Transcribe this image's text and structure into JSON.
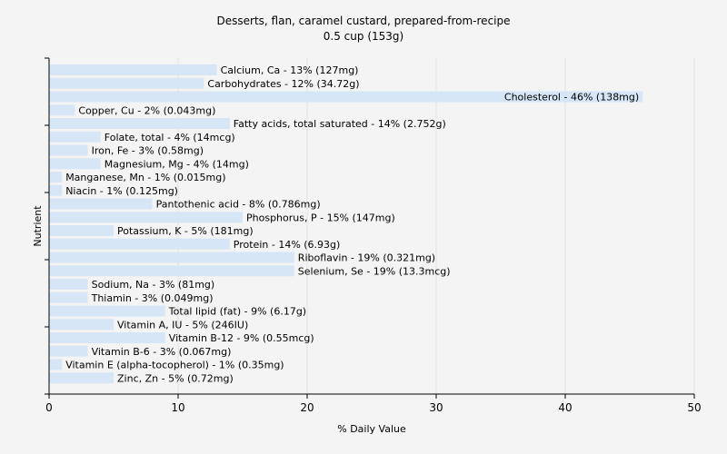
{
  "chart_data": {
    "type": "bar",
    "orientation": "horizontal",
    "title": "Desserts, flan, caramel custard, prepared-from-recipe",
    "subtitle": "0.5 cup (153g)",
    "xlabel": "% Daily Value",
    "ylabel": "Nutrient",
    "xlim": [
      0,
      50
    ],
    "xticks": [
      "0",
      "10",
      "20",
      "30",
      "40",
      "50"
    ],
    "grid": true,
    "bar_color": "#d6e6f7",
    "categories": [
      "Calcium, Ca",
      "Carbohydrates",
      "Cholesterol",
      "Copper, Cu",
      "Fatty acids, total saturated",
      "Folate, total",
      "Iron, Fe",
      "Magnesium, Mg",
      "Manganese, Mn",
      "Niacin",
      "Pantothenic acid",
      "Phosphorus, P",
      "Potassium, K",
      "Protein",
      "Riboflavin",
      "Selenium, Se",
      "Sodium, Na",
      "Thiamin",
      "Total lipid (fat)",
      "Vitamin A, IU",
      "Vitamin B-12",
      "Vitamin B-6",
      "Vitamin E (alpha-tocopherol)",
      "Zinc, Zn"
    ],
    "values": [
      13,
      12,
      46,
      2,
      14,
      4,
      3,
      4,
      1,
      1,
      8,
      15,
      5,
      14,
      19,
      19,
      3,
      3,
      9,
      5,
      9,
      3,
      1,
      5
    ],
    "labels": [
      "Calcium, Ca - 13% (127mg)",
      "Carbohydrates - 12% (34.72g)",
      "Cholesterol - 46% (138mg)",
      "Copper, Cu - 2% (0.043mg)",
      "Fatty acids, total saturated - 14% (2.752g)",
      "Folate, total - 4% (14mcg)",
      "Iron, Fe - 3% (0.58mg)",
      "Magnesium, Mg - 4% (14mg)",
      "Manganese, Mn - 1% (0.015mg)",
      "Niacin - 1% (0.125mg)",
      "Pantothenic acid - 8% (0.786mg)",
      "Phosphorus, P - 15% (147mg)",
      "Potassium, K - 5% (181mg)",
      "Protein - 14% (6.93g)",
      "Riboflavin - 19% (0.321mg)",
      "Selenium, Se - 19% (13.3mcg)",
      "Sodium, Na - 3% (81mg)",
      "Thiamin - 3% (0.049mg)",
      "Total lipid (fat) - 9% (6.17g)",
      "Vitamin A, IU - 5% (246IU)",
      "Vitamin B-12 - 9% (0.55mcg)",
      "Vitamin B-6 - 3% (0.067mg)",
      "Vitamin E (alpha-tocopherol) - 1% (0.35mg)",
      "Zinc, Zn - 5% (0.72mg)"
    ]
  }
}
